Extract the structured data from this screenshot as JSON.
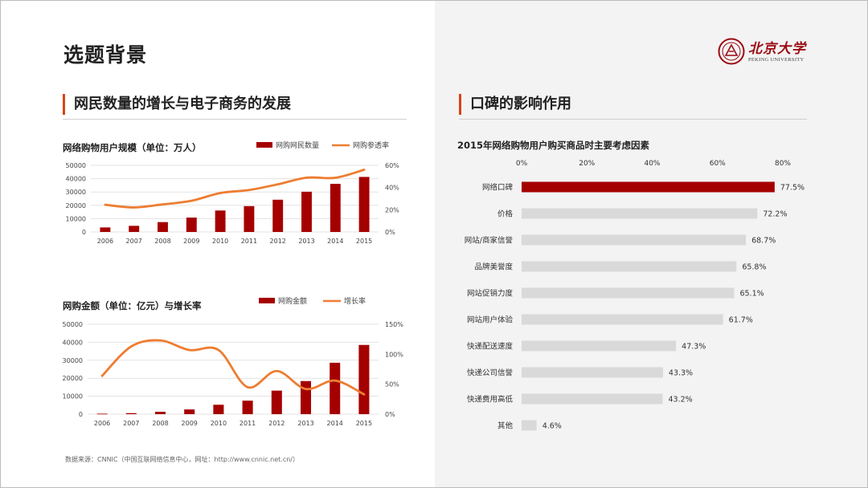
{
  "page_title": "选题背景",
  "left_section_title": "网民数量的增长与电子商务的发展",
  "right_section_title": "口碑的影响作用",
  "logo": {
    "cn": "北京大学",
    "en": "PEKING UNIVERSITY"
  },
  "source": "数据来源：CNNIC（中国互联网络信息中心，网址：http://www.cnnic.net.cn/）",
  "colors": {
    "bar_dark": "#a50000",
    "line_orange": "#ed7d31",
    "accent": "#d84315",
    "bar_grey": "#d9d9d9"
  },
  "chart_data": [
    {
      "type": "bar",
      "title": "网络购物用户规模（单位：万人）",
      "categories": [
        "2006",
        "2007",
        "2008",
        "2009",
        "2010",
        "2011",
        "2012",
        "2013",
        "2014",
        "2015"
      ],
      "y_ticks": [
        "50000",
        "40000",
        "30000",
        "20000",
        "10000",
        "0"
      ],
      "y2_ticks": [
        "60%",
        "40%",
        "20%",
        "0%"
      ],
      "ylim": [
        0,
        50000
      ],
      "y2lim": [
        0,
        60
      ],
      "legend_position": "top-right",
      "series": [
        {
          "name": "网购网民数量",
          "type": "bar",
          "values": [
            3400,
            4600,
            7400,
            10800,
            16100,
            19400,
            24200,
            30200,
            36100,
            41300
          ]
        },
        {
          "name": "网购参透率",
          "type": "line",
          "axis": "right",
          "values": [
            24.5,
            22.1,
            24.8,
            28.1,
            35.1,
            37.8,
            42.9,
            48.9,
            48.8,
            56
          ]
        }
      ]
    },
    {
      "type": "bar",
      "title": "网购金额（单位：亿元）与增长率",
      "categories": [
        "2006",
        "2007",
        "2008",
        "2009",
        "2010",
        "2011",
        "2012",
        "2013",
        "2014",
        "2015"
      ],
      "y_ticks": [
        "50000",
        "40000",
        "30000",
        "20000",
        "10000",
        "0"
      ],
      "y2_ticks": [
        "150%",
        "100%",
        "50%",
        "0%"
      ],
      "ylim": [
        0,
        50000
      ],
      "y2lim": [
        0,
        150
      ],
      "legend_position": "top-right",
      "series": [
        {
          "name": "网购金额",
          "type": "bar",
          "values": [
            260,
            560,
            1300,
            2630,
            5230,
            7500,
            13100,
            18400,
            28600,
            38500
          ]
        },
        {
          "name": "增长率",
          "type": "line",
          "axis": "right",
          "values": [
            64,
            113,
            123,
            107,
            107,
            45,
            72,
            42,
            56,
            33
          ]
        }
      ]
    },
    {
      "type": "bar",
      "orientation": "horizontal",
      "title": "2015年网络购物用户购买商品时主要考虑因素",
      "categories": [
        "网络口碑",
        "价格",
        "网站/商家信誉",
        "品牌美誉度",
        "网站促销力度",
        "网站用户体验",
        "快递配送速度",
        "快递公司信誉",
        "快递费用高低",
        "其他"
      ],
      "values": [
        77.5,
        72.2,
        68.7,
        65.8,
        65.1,
        61.7,
        47.3,
        43.3,
        43.2,
        4.6
      ],
      "value_labels": [
        "77.5%",
        "72.2%",
        "68.7%",
        "65.8%",
        "65.1%",
        "61.7%",
        "47.3%",
        "43.3%",
        "43.2%",
        "4.6%"
      ],
      "x_ticks": [
        "0%",
        "20%",
        "40%",
        "60%",
        "80%"
      ],
      "xlim": [
        0,
        80
      ],
      "highlight_index": 0
    }
  ]
}
